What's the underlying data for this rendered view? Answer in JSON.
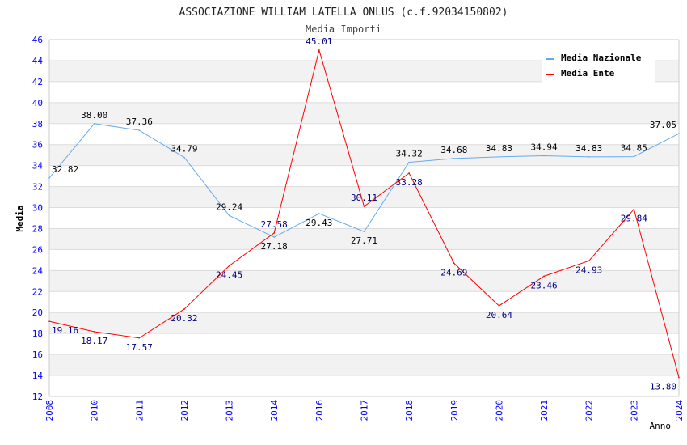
{
  "chart_data": {
    "type": "line",
    "title": "ASSOCIAZIONE WILLIAM LATELLA ONLUS (c.f.92034150802)",
    "subtitle": "Media Importi",
    "xlabel": "Anno",
    "ylabel": "Media",
    "ylim": [
      12,
      46
    ],
    "yticks": [
      "12",
      "14",
      "16",
      "18",
      "20",
      "22",
      "24",
      "26",
      "28",
      "30",
      "32",
      "34",
      "36",
      "38",
      "40",
      "42",
      "44",
      "46"
    ],
    "categories": [
      "2008",
      "2010",
      "2011",
      "2012",
      "2013",
      "2014",
      "2016",
      "2017",
      "2018",
      "2019",
      "2020",
      "2021",
      "2022",
      "2023",
      "2024"
    ],
    "grid": true,
    "legend_position": "top-right",
    "series": [
      {
        "name": "Media Nazionale",
        "color": "#66aaee",
        "label_color": "#000000",
        "values": [
          32.82,
          38.0,
          37.36,
          34.79,
          29.24,
          27.18,
          29.43,
          27.71,
          34.32,
          34.68,
          34.83,
          34.94,
          34.83,
          34.85,
          37.05
        ],
        "labels": [
          "32.82",
          "38.00",
          "37.36",
          "34.79",
          "29.24",
          "27.18",
          "29.43",
          "27.71",
          "34.32",
          "34.68",
          "34.83",
          "34.94",
          "34.83",
          "34.85",
          "37.05"
        ]
      },
      {
        "name": "Media Ente",
        "color": "#ff0000",
        "label_color": "#000080",
        "values": [
          19.16,
          18.17,
          17.57,
          20.32,
          24.45,
          27.58,
          45.01,
          30.11,
          33.28,
          24.69,
          20.64,
          23.46,
          24.93,
          29.84,
          13.8
        ],
        "labels": [
          "19.16",
          "18.17",
          "17.57",
          "20.32",
          "24.45",
          "27.58",
          "45.01",
          "30.11",
          "33.28",
          "24.69",
          "20.64",
          "23.46",
          "24.93",
          "29.84",
          "13.80"
        ]
      }
    ]
  }
}
